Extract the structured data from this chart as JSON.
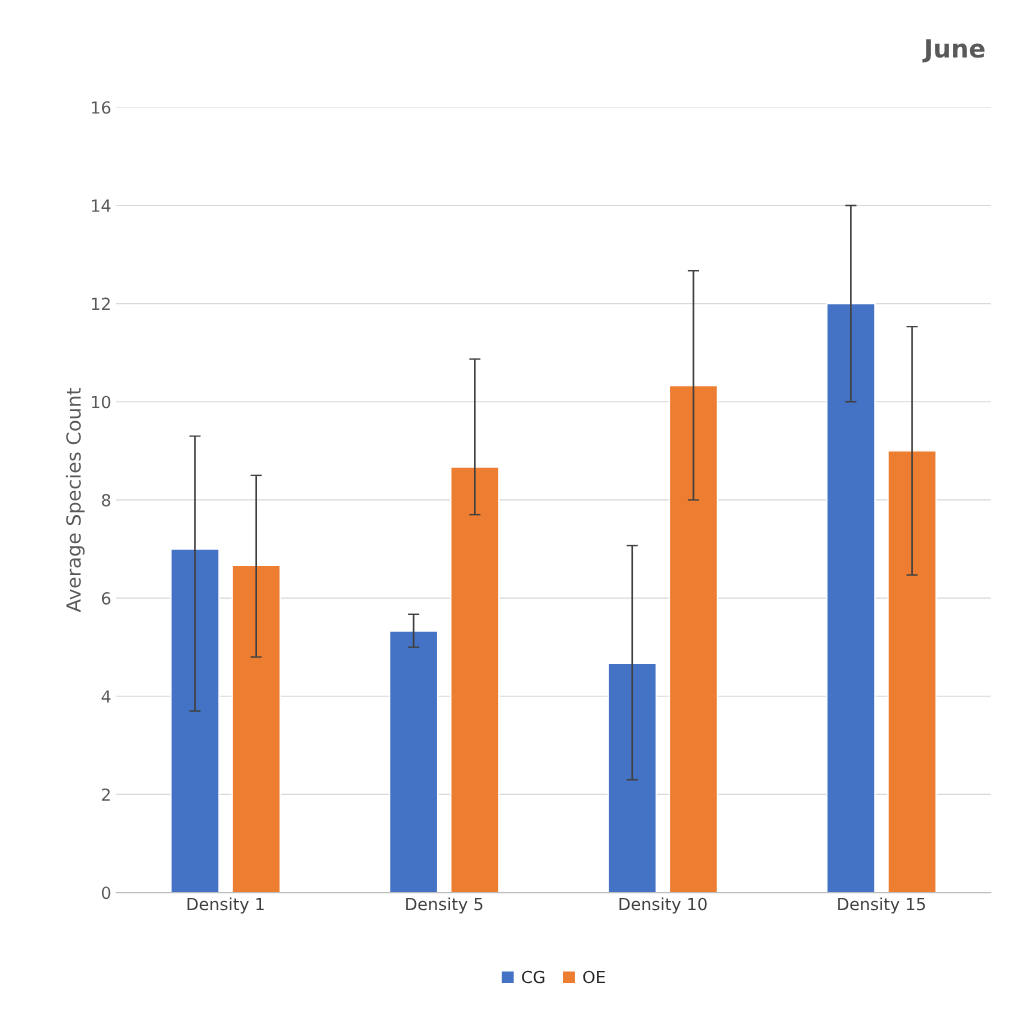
{
  "chart_data": {
    "type": "bar",
    "title": "June",
    "ylabel": "Average Species Count",
    "categories": [
      "Density 1",
      "Density 5",
      "Density 10",
      "Density 15"
    ],
    "series": [
      {
        "name": "CG",
        "color": "#4472c4",
        "values": [
          7,
          5.33,
          4.67,
          12
        ],
        "errors": [
          [
            3.7,
            9.3
          ],
          [
            5.0,
            5.67
          ],
          [
            2.3,
            7.07
          ],
          [
            10,
            14
          ]
        ]
      },
      {
        "name": "OE",
        "color": "#ed7d31",
        "values": [
          6.67,
          8.67,
          10.33,
          9
        ],
        "errors": [
          [
            4.8,
            8.5
          ],
          [
            7.7,
            10.87
          ],
          [
            8,
            12.67
          ],
          [
            6.47,
            11.53
          ]
        ]
      }
    ],
    "ylim": [
      0,
      16
    ],
    "yticks": [
      0,
      2,
      4,
      6,
      8,
      10,
      12,
      14,
      16
    ],
    "grid": "y",
    "legend": "bottom"
  }
}
